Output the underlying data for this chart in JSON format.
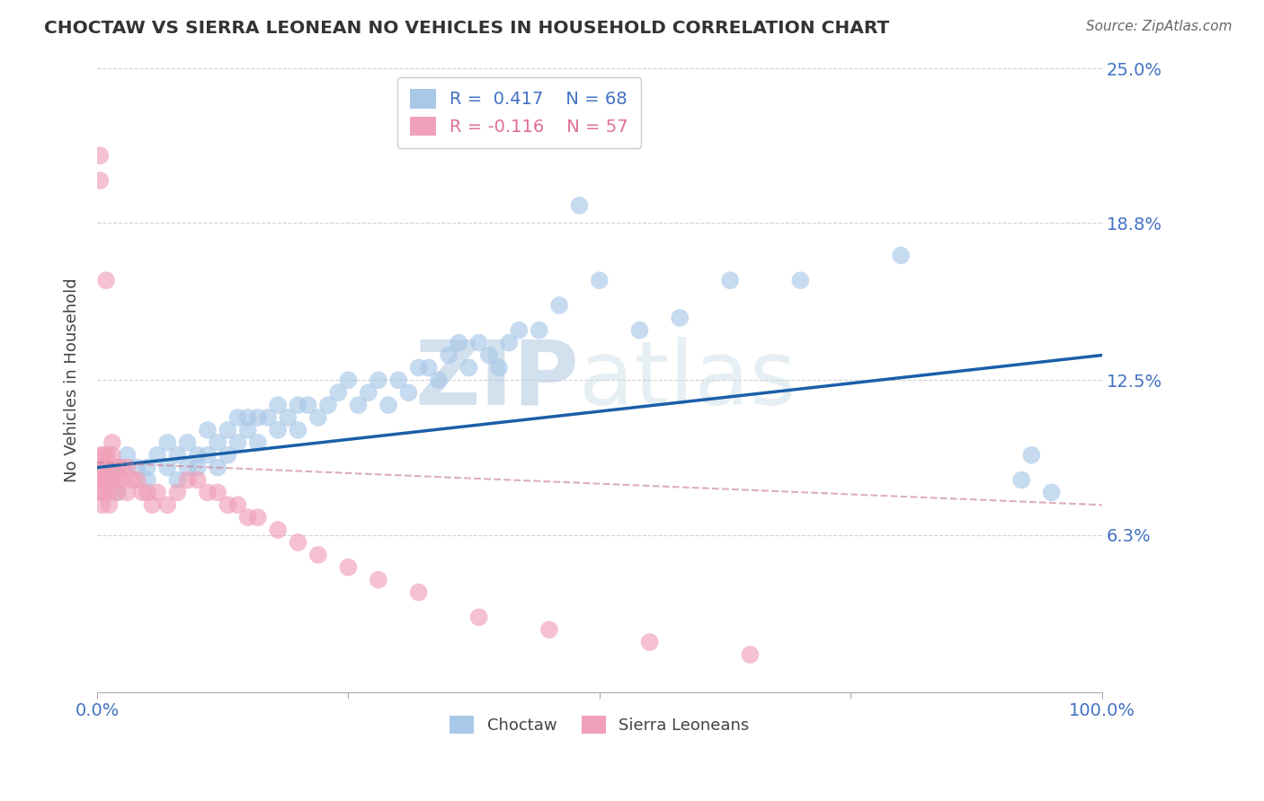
{
  "title": "CHOCTAW VS SIERRA LEONEAN NO VEHICLES IN HOUSEHOLD CORRELATION CHART",
  "source_text": "Source: ZipAtlas.com",
  "ylabel": "No Vehicles in Household",
  "xlim": [
    0,
    100
  ],
  "ylim": [
    0,
    25
  ],
  "ytick_vals": [
    6.3,
    12.5,
    18.8,
    25.0
  ],
  "ytick_labels": [
    "6.3%",
    "12.5%",
    "18.8%",
    "25.0%"
  ],
  "legend_label1": "Choctaw",
  "legend_label2": "Sierra Leoneans",
  "r1": 0.417,
  "n1": 68,
  "r2": -0.116,
  "n2": 57,
  "color_blue": "#a8c8e8",
  "color_pink": "#f0a0b8",
  "trend_blue": "#1a5fa8",
  "trend_pink": "#c87890",
  "watermark_zip": "ZIP",
  "watermark_atlas": "atlas",
  "blue_trend_start": 9.0,
  "blue_trend_end": 13.5,
  "pink_trend_start": 9.2,
  "pink_trend_end": 7.5,
  "blue_x": [
    1.5,
    2,
    2,
    3,
    4,
    5,
    5,
    6,
    7,
    7,
    8,
    8,
    9,
    9,
    10,
    10,
    11,
    11,
    12,
    12,
    13,
    13,
    14,
    14,
    15,
    15,
    16,
    16,
    17,
    18,
    18,
    19,
    20,
    20,
    21,
    22,
    23,
    24,
    25,
    26,
    27,
    28,
    29,
    30,
    31,
    32,
    33,
    34,
    35,
    36,
    37,
    38,
    39,
    40,
    41,
    42,
    44,
    46,
    48,
    50,
    54,
    58,
    63,
    70,
    80,
    92,
    93,
    95
  ],
  "blue_y": [
    8.5,
    9.0,
    8.0,
    9.5,
    9.0,
    9.0,
    8.5,
    9.5,
    10.0,
    9.0,
    9.5,
    8.5,
    9.0,
    10.0,
    9.5,
    9.0,
    10.5,
    9.5,
    10.0,
    9.0,
    10.5,
    9.5,
    11.0,
    10.0,
    11.0,
    10.5,
    11.0,
    10.0,
    11.0,
    11.5,
    10.5,
    11.0,
    11.5,
    10.5,
    11.5,
    11.0,
    11.5,
    12.0,
    12.5,
    11.5,
    12.0,
    12.5,
    11.5,
    12.5,
    12.0,
    13.0,
    13.0,
    12.5,
    13.5,
    14.0,
    13.0,
    14.0,
    13.5,
    13.0,
    14.0,
    14.5,
    14.5,
    15.5,
    19.5,
    16.5,
    14.5,
    15.0,
    16.5,
    16.5,
    17.5,
    8.5,
    9.5,
    8.0
  ],
  "pink_x": [
    0.3,
    0.3,
    0.4,
    0.4,
    0.5,
    0.5,
    0.5,
    0.5,
    0.5,
    0.6,
    0.6,
    0.7,
    0.7,
    0.8,
    0.8,
    0.9,
    1.0,
    1.0,
    1.0,
    1.2,
    1.2,
    1.5,
    1.5,
    1.5,
    2.0,
    2.0,
    2.0,
    2.5,
    2.5,
    3.0,
    3.0,
    3.5,
    4.0,
    4.5,
    5.0,
    5.5,
    6.0,
    7.0,
    8.0,
    9.0,
    10.0,
    11.0,
    12.0,
    13.0,
    14.0,
    15.0,
    16.0,
    18.0,
    20.0,
    22.0,
    25.0,
    28.0,
    32.0,
    38.0,
    45.0,
    55.0,
    65.0
  ],
  "pink_y": [
    21.5,
    20.5,
    9.5,
    9.0,
    8.5,
    8.5,
    8.0,
    8.0,
    7.5,
    9.0,
    8.5,
    9.5,
    8.5,
    9.0,
    8.5,
    16.5,
    9.5,
    9.0,
    8.5,
    8.0,
    7.5,
    10.0,
    9.5,
    8.5,
    9.0,
    8.5,
    8.0,
    9.0,
    8.5,
    9.0,
    8.0,
    8.5,
    8.5,
    8.0,
    8.0,
    7.5,
    8.0,
    7.5,
    8.0,
    8.5,
    8.5,
    8.0,
    8.0,
    7.5,
    7.5,
    7.0,
    7.0,
    6.5,
    6.0,
    5.5,
    5.0,
    4.5,
    4.0,
    3.0,
    2.5,
    2.0,
    1.5
  ]
}
